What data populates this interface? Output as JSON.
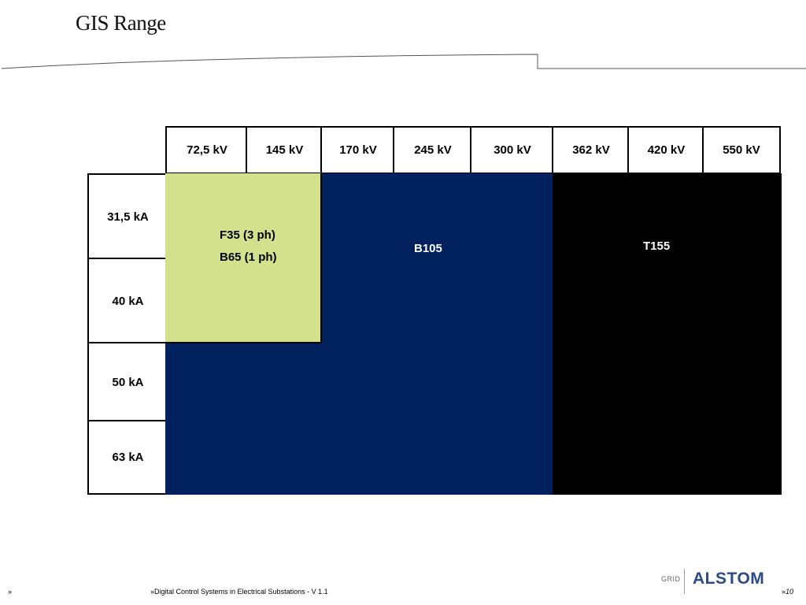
{
  "slide": {
    "title": "GIS Range"
  },
  "voltage_columns": [
    "72,5 kV",
    "145 kV",
    "170 kV",
    "245 kV",
    "300 kV",
    "362 kV",
    "420 kV",
    "550 kV"
  ],
  "current_rows": [
    "31,5 kA",
    "40 kA",
    "50 kA",
    "63 kA"
  ],
  "blocks": {
    "f35": {
      "line1": "F35 (3 ph)",
      "line2": "B65 (1 ph)",
      "color": "#d3e08c"
    },
    "b105": {
      "label": "B105",
      "color": "#00215e"
    },
    "t155": {
      "label": "T155",
      "color": "#000000"
    }
  },
  "footer": {
    "left_marker": "»",
    "doc_title": "»Digital Control Systems in Electrical Substations  - V 1.1",
    "page_marker": "»",
    "page_number": "10"
  },
  "logo": {
    "grid": "GRID",
    "brand": "ALSTOM"
  }
}
